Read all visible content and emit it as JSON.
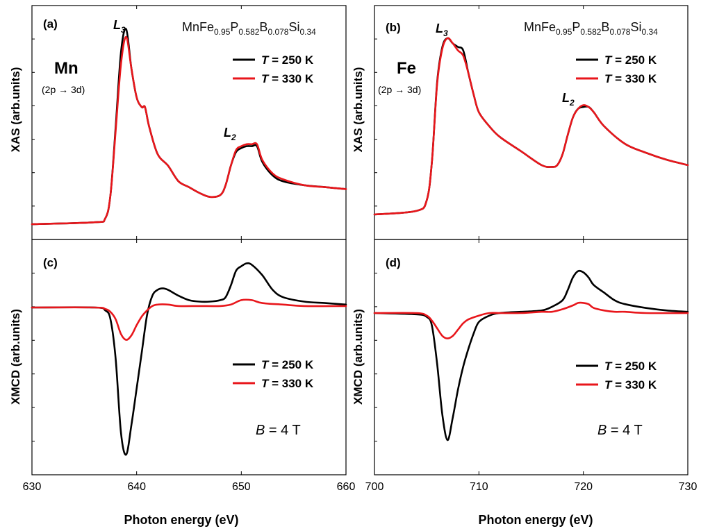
{
  "figure": {
    "xlabel": "Photon energy (eV)",
    "formula": {
      "base": "MnFe",
      "s1": "0.95",
      "p": "P",
      "s2": "0.582",
      "b": "B",
      "s3": "0.078",
      "si": "Si",
      "s4": "0.34"
    },
    "legend": {
      "a": "T",
      "rest_250": " = 250 K",
      "rest_330": " = 330 K"
    },
    "field": {
      "a": "B",
      "rest": " = 4 T"
    },
    "edge": {
      "l": "L",
      "s3": "3",
      "s2": "2"
    },
    "transition": "(2p → 3d)",
    "colors": {
      "t250": "#000000",
      "t330": "#e8161b"
    }
  },
  "chart_data": [
    {
      "id": "a",
      "panel_label": "(a)",
      "type": "line",
      "element": "Mn",
      "ylabel": "XAS (arb.units)",
      "xlim": [
        630,
        660
      ],
      "ylim": [
        0,
        1.1
      ],
      "xticks": [],
      "series": [
        {
          "name": "T = 250 K",
          "color": "#000000",
          "x": [
            630,
            636,
            637,
            637.5,
            638,
            638.5,
            639,
            639.5,
            640,
            640.5,
            640.8,
            641.2,
            642,
            643,
            644,
            645,
            646,
            647,
            648,
            648.5,
            649,
            649.5,
            650,
            650.5,
            651,
            651.5,
            652,
            653,
            654,
            656,
            658,
            660
          ],
          "y": [
            0.0,
            0.01,
            0.03,
            0.15,
            0.5,
            0.88,
            1.0,
            0.8,
            0.65,
            0.6,
            0.6,
            0.5,
            0.36,
            0.3,
            0.22,
            0.19,
            0.16,
            0.14,
            0.15,
            0.2,
            0.3,
            0.37,
            0.39,
            0.4,
            0.4,
            0.4,
            0.32,
            0.25,
            0.22,
            0.2,
            0.19,
            0.18
          ]
        },
        {
          "name": "T = 330 K",
          "color": "#e8161b",
          "x": [
            630,
            636,
            637,
            637.5,
            638,
            638.5,
            639,
            639.5,
            640,
            640.5,
            640.8,
            641.2,
            642,
            643,
            644,
            645,
            646,
            647,
            648,
            648.5,
            649,
            649.5,
            650,
            650.5,
            651,
            651.5,
            652,
            653,
            654,
            656,
            658,
            660
          ],
          "y": [
            0.0,
            0.01,
            0.03,
            0.15,
            0.48,
            0.82,
            0.96,
            0.8,
            0.65,
            0.6,
            0.6,
            0.5,
            0.36,
            0.3,
            0.22,
            0.19,
            0.16,
            0.14,
            0.15,
            0.2,
            0.3,
            0.38,
            0.4,
            0.41,
            0.41,
            0.41,
            0.33,
            0.26,
            0.23,
            0.2,
            0.19,
            0.18
          ]
        }
      ]
    },
    {
      "id": "b",
      "panel_label": "(b)",
      "type": "line",
      "element": "Fe",
      "ylabel": "XAS (arb.units)",
      "xlim": [
        700,
        730
      ],
      "ylim": [
        0,
        1.1
      ],
      "xticks": [],
      "series": [
        {
          "name": "T = 250 K",
          "color": "#000000",
          "x": [
            700,
            704,
            705,
            705.5,
            706,
            706.5,
            707,
            707.5,
            708,
            708.5,
            709,
            709.5,
            710,
            711,
            712,
            714,
            716,
            717,
            717.5,
            718,
            718.5,
            719,
            719.5,
            720,
            720.5,
            721,
            722,
            724,
            726,
            728,
            730
          ],
          "y": [
            0.0,
            0.02,
            0.08,
            0.3,
            0.75,
            0.95,
            1.0,
            0.97,
            0.95,
            0.93,
            0.8,
            0.68,
            0.58,
            0.5,
            0.44,
            0.36,
            0.28,
            0.27,
            0.28,
            0.34,
            0.45,
            0.55,
            0.6,
            0.61,
            0.61,
            0.58,
            0.5,
            0.4,
            0.35,
            0.31,
            0.28
          ]
        },
        {
          "name": "T = 330 K",
          "color": "#e8161b",
          "x": [
            700,
            704,
            705,
            705.5,
            706,
            706.5,
            707,
            707.5,
            708,
            708.5,
            709,
            709.5,
            710,
            711,
            712,
            714,
            716,
            717,
            717.5,
            718,
            718.5,
            719,
            719.5,
            720,
            720.5,
            721,
            722,
            724,
            726,
            728,
            730
          ],
          "y": [
            0.0,
            0.02,
            0.08,
            0.3,
            0.74,
            0.94,
            1.0,
            0.97,
            0.93,
            0.9,
            0.8,
            0.68,
            0.58,
            0.5,
            0.44,
            0.36,
            0.28,
            0.27,
            0.28,
            0.34,
            0.45,
            0.55,
            0.6,
            0.62,
            0.61,
            0.58,
            0.5,
            0.4,
            0.35,
            0.31,
            0.28
          ]
        }
      ]
    },
    {
      "id": "c",
      "panel_label": "(c)",
      "type": "line",
      "ylabel": "XMCD (arb.units)",
      "xlim": [
        630,
        660
      ],
      "ylim": [
        -1.15,
        0.3
      ],
      "xticks": [
        630,
        640,
        650,
        660
      ],
      "series": [
        {
          "name": "T = 250 K",
          "color": "#000000",
          "x": [
            630,
            636,
            637,
            637.5,
            638,
            638.5,
            639,
            639.5,
            640,
            640.5,
            641,
            641.5,
            642,
            642.5,
            643,
            644,
            645,
            646,
            647,
            648,
            648.5,
            649,
            649.5,
            650,
            650.5,
            651,
            652,
            653,
            654,
            656,
            658,
            660
          ],
          "y": [
            0.0,
            0.0,
            -0.02,
            -0.08,
            -0.35,
            -0.85,
            -1.0,
            -0.8,
            -0.55,
            -0.3,
            -0.05,
            0.08,
            0.12,
            0.13,
            0.12,
            0.08,
            0.05,
            0.04,
            0.04,
            0.05,
            0.07,
            0.15,
            0.25,
            0.28,
            0.3,
            0.29,
            0.22,
            0.12,
            0.07,
            0.04,
            0.03,
            0.02
          ]
        },
        {
          "name": "T = 330 K",
          "color": "#e8161b",
          "x": [
            630,
            636,
            637,
            637.5,
            638,
            638.5,
            639,
            639.5,
            640,
            640.5,
            641,
            641.5,
            642,
            643,
            644,
            646,
            648,
            649,
            650,
            651,
            652,
            654,
            656,
            660
          ],
          "y": [
            0.0,
            0.0,
            -0.01,
            -0.03,
            -0.08,
            -0.18,
            -0.22,
            -0.19,
            -0.12,
            -0.06,
            -0.02,
            0.01,
            0.02,
            0.02,
            0.01,
            0.01,
            0.01,
            0.02,
            0.05,
            0.05,
            0.03,
            0.02,
            0.01,
            0.01
          ]
        }
      ]
    },
    {
      "id": "d",
      "panel_label": "(d)",
      "type": "line",
      "ylabel": "XMCD (arb.units)",
      "xlim": [
        700,
        730
      ],
      "ylim": [
        -1.15,
        0.3
      ],
      "xticks": [
        700,
        710,
        720,
        730
      ],
      "series": [
        {
          "name": "T = 250 K",
          "color": "#000000",
          "x": [
            700,
            704,
            705,
            705.5,
            706,
            706.5,
            707,
            707.5,
            708,
            708.5,
            709,
            709.5,
            710,
            711,
            712,
            714,
            716,
            717,
            718,
            718.5,
            719,
            719.5,
            720,
            720.5,
            721,
            722,
            723,
            724,
            726,
            728,
            730
          ],
          "y": [
            0.0,
            -0.01,
            -0.03,
            -0.1,
            -0.4,
            -0.8,
            -1.0,
            -0.82,
            -0.6,
            -0.42,
            -0.28,
            -0.16,
            -0.07,
            -0.02,
            0.0,
            0.01,
            0.02,
            0.05,
            0.1,
            0.18,
            0.28,
            0.33,
            0.32,
            0.28,
            0.22,
            0.16,
            0.1,
            0.07,
            0.04,
            0.02,
            0.01
          ]
        },
        {
          "name": "T = 330 K",
          "color": "#e8161b",
          "x": [
            700,
            704,
            705,
            705.5,
            706,
            706.5,
            707,
            707.5,
            708,
            708.5,
            709,
            710,
            711,
            712,
            714,
            716,
            717,
            718,
            719,
            719.5,
            720,
            720.5,
            721,
            722,
            723,
            724,
            726,
            730
          ],
          "y": [
            0.0,
            0.0,
            -0.02,
            -0.06,
            -0.12,
            -0.18,
            -0.2,
            -0.18,
            -0.13,
            -0.08,
            -0.05,
            -0.02,
            0.0,
            0.0,
            0.0,
            0.01,
            0.01,
            0.03,
            0.06,
            0.08,
            0.08,
            0.07,
            0.04,
            0.02,
            0.01,
            0.01,
            0.0,
            0.0
          ]
        }
      ]
    }
  ]
}
